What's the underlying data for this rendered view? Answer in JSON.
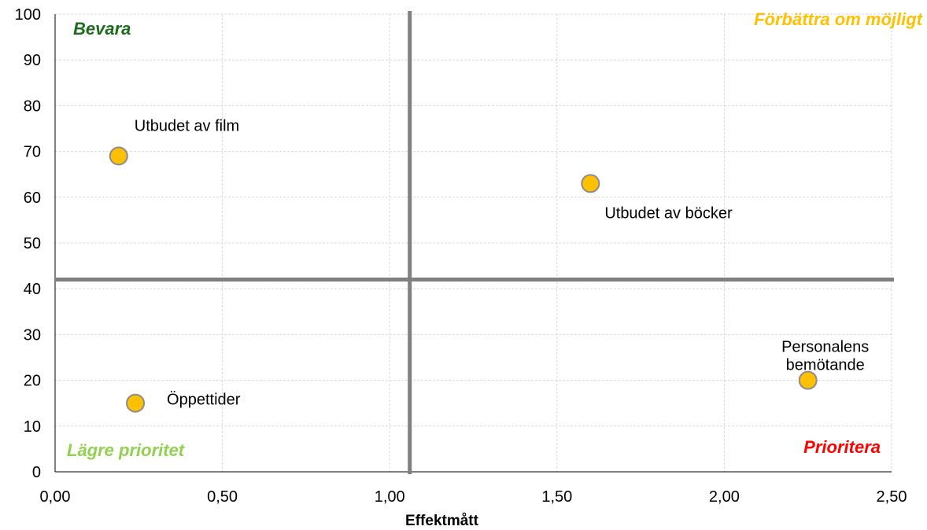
{
  "chart_data": {
    "type": "scatter",
    "title": "",
    "xlabel": "Effektmått",
    "ylabel": "",
    "xlim": [
      0,
      2.5
    ],
    "ylim": [
      0,
      100
    ],
    "x_ticks": [
      "0,00",
      "0,50",
      "1,00",
      "1,50",
      "2,00",
      "2,50"
    ],
    "y_ticks": [
      "0",
      "10",
      "20",
      "30",
      "40",
      "50",
      "60",
      "70",
      "80",
      "90",
      "100"
    ],
    "grid": true,
    "divider_x": 1.06,
    "divider_y": 42,
    "points": [
      {
        "label": "Utbudet av film",
        "x": 0.19,
        "y": 69
      },
      {
        "label": "Utbudet av böcker",
        "x": 1.6,
        "y": 63
      },
      {
        "label": "Öppettider",
        "x": 0.24,
        "y": 15
      },
      {
        "label": "Personalens bemötande",
        "x": 2.25,
        "y": 20
      }
    ],
    "quadrant_labels": {
      "top_left": {
        "text": "Bevara",
        "color": "#1e6b1e"
      },
      "top_right": {
        "text": "Förbättra om möjligt",
        "color": "#ffc000"
      },
      "bottom_left": {
        "text": "Lägre prioritet",
        "color": "#92d050"
      },
      "bottom_right": {
        "text": "Prioritera",
        "color": "#ff0000"
      }
    },
    "colors": {
      "marker_fill": "#ffc000",
      "marker_stroke": "#8c8c8c",
      "divider": "#808080",
      "grid": "#d9d9d9"
    }
  }
}
